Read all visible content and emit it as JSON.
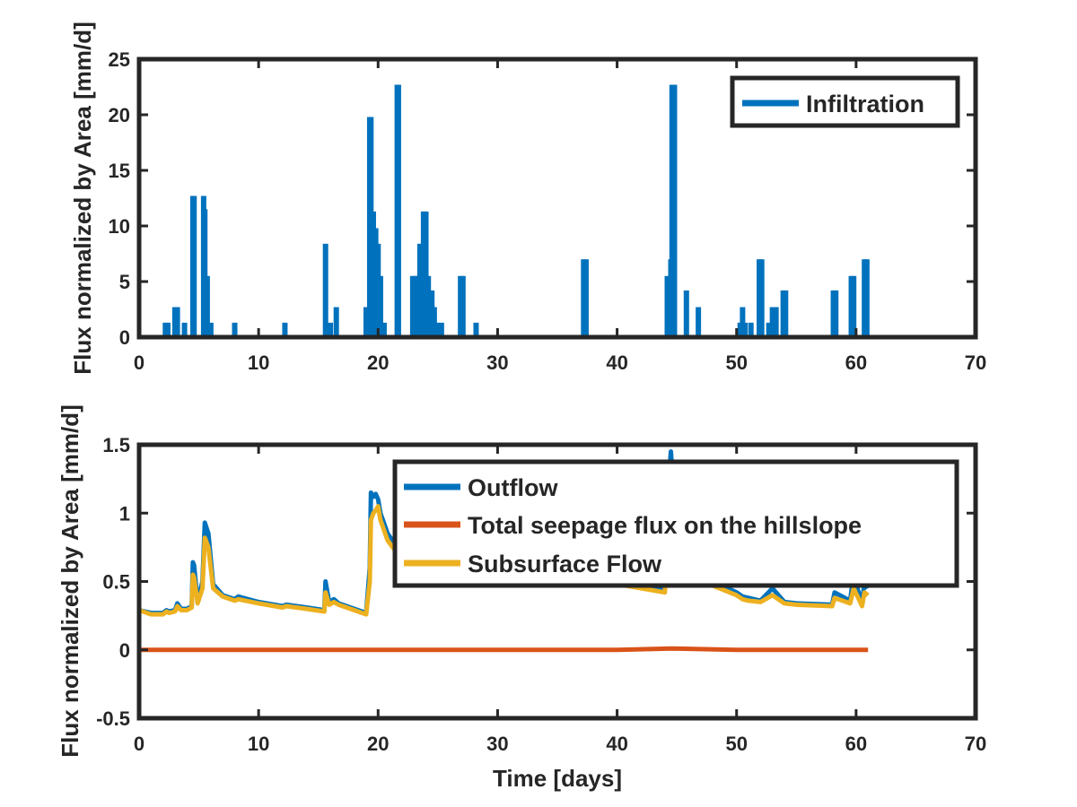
{
  "chart_data": [
    {
      "type": "bar",
      "title": "",
      "xlabel": "",
      "ylabel": "Flux normalized by Area [mm/d]",
      "xlim": [
        0,
        70
      ],
      "ylim": [
        0,
        25
      ],
      "xticks": [
        "0",
        "10",
        "20",
        "30",
        "40",
        "50",
        "60",
        "70"
      ],
      "yticks": [
        "0",
        "5",
        "10",
        "15",
        "20",
        "25"
      ],
      "grid": false,
      "legend_position": "top-right",
      "colors": {
        "infiltration": "#0072BD"
      },
      "series": [
        {
          "name": "Infiltration",
          "x": [
            2.2,
            2.4,
            3.0,
            3.2,
            3.8,
            4.5,
            4.6,
            5.4,
            5.5,
            5.7,
            6.0,
            8.0,
            12.2,
            15.6,
            16.0,
            16.5,
            19.0,
            19.3,
            19.4,
            19.6,
            19.8,
            20.0,
            20.2,
            20.5,
            21.6,
            21.7,
            22.9,
            23.1,
            23.3,
            23.5,
            23.8,
            24.0,
            24.2,
            24.5,
            24.7,
            25.0,
            25.3,
            26.9,
            27.1,
            28.2,
            37.2,
            37.4,
            44.2,
            44.5,
            44.6,
            44.8,
            45.8,
            46.8,
            50.3,
            50.5,
            50.7,
            51.2,
            51.9,
            52.1,
            52.7,
            53.0,
            53.3,
            53.9,
            54.1,
            58.1,
            58.3,
            59.6,
            59.8,
            60.7,
            60.9
          ],
          "values": [
            1.3,
            1.3,
            2.7,
            2.7,
            1.3,
            12.7,
            12.7,
            12.7,
            11.5,
            5.5,
            1.3,
            1.3,
            1.3,
            8.4,
            1.3,
            2.7,
            2.7,
            19.8,
            19.8,
            11.3,
            9.8,
            8.4,
            5.5,
            1.3,
            22.7,
            22.7,
            5.5,
            5.5,
            5.5,
            8.4,
            11.3,
            11.3,
            5.5,
            4.2,
            2.7,
            1.3,
            1.3,
            5.5,
            5.5,
            1.3,
            7.0,
            7.0,
            5.5,
            7.0,
            22.7,
            22.7,
            4.2,
            2.7,
            1.3,
            2.7,
            1.3,
            1.3,
            7.0,
            7.0,
            1.3,
            2.7,
            2.7,
            4.2,
            4.2,
            4.2,
            4.2,
            5.5,
            5.5,
            7.0,
            7.0
          ]
        }
      ]
    },
    {
      "type": "line",
      "title": "",
      "xlabel": "Time [days]",
      "ylabel": "Flux normalized by Area [mm/d]",
      "xlim": [
        0,
        70
      ],
      "ylim": [
        -0.5,
        1.5
      ],
      "xticks": [
        "0",
        "10",
        "20",
        "30",
        "40",
        "50",
        "60",
        "70"
      ],
      "yticks": [
        "-0.5",
        "0",
        "0.5",
        "1",
        "1.5"
      ],
      "grid": false,
      "legend_position": "top-right",
      "colors": {
        "outflow": "#0072BD",
        "seepage": "#D95319",
        "subsurface": "#EDB120"
      },
      "series": [
        {
          "name": "Outflow",
          "x": [
            0,
            1.0,
            2.0,
            2.3,
            2.5,
            3.0,
            3.2,
            3.5,
            4.0,
            4.4,
            4.5,
            4.6,
            4.9,
            5.3,
            5.5,
            5.8,
            6.2,
            7.0,
            8.0,
            8.3,
            10.0,
            12.0,
            12.3,
            14.0,
            15.5,
            15.6,
            15.9,
            16.3,
            16.7,
            18.0,
            19.0,
            19.3,
            19.4,
            19.6,
            19.8,
            20.0,
            20.2,
            20.8,
            22.0,
            23.0,
            25.0,
            30.0,
            35.0,
            40.0,
            44.0,
            44.3,
            44.5,
            44.7,
            45.0,
            46.0,
            48.0,
            50.0,
            50.5,
            51.0,
            52.0,
            53.0,
            54.0,
            55.0,
            58.0,
            58.2,
            59.5,
            59.8,
            60.5,
            60.7,
            61.0
          ],
          "values": [
            0.29,
            0.27,
            0.27,
            0.29,
            0.28,
            0.29,
            0.34,
            0.3,
            0.3,
            0.32,
            0.64,
            0.62,
            0.35,
            0.5,
            0.93,
            0.85,
            0.48,
            0.4,
            0.37,
            0.39,
            0.35,
            0.32,
            0.33,
            0.31,
            0.29,
            0.5,
            0.35,
            0.37,
            0.34,
            0.3,
            0.27,
            0.6,
            1.15,
            1.12,
            1.14,
            1.1,
            1.0,
            0.85,
            0.7,
            0.65,
            0.62,
            0.58,
            0.55,
            0.5,
            0.45,
            1.2,
            1.45,
            1.2,
            0.9,
            0.6,
            0.5,
            0.42,
            0.39,
            0.38,
            0.36,
            0.45,
            0.35,
            0.34,
            0.33,
            0.42,
            0.36,
            0.55,
            0.33,
            0.5,
            0.45
          ]
        },
        {
          "name": "Total seepage flux on the hillslope",
          "x": [
            0,
            10,
            20,
            30,
            40,
            44.6,
            50,
            61
          ],
          "values": [
            0,
            0,
            0,
            0,
            0,
            0.01,
            0,
            0
          ]
        },
        {
          "name": "Subsurface Flow",
          "x": [
            0,
            1.0,
            2.0,
            2.3,
            2.5,
            3.0,
            3.2,
            3.5,
            4.0,
            4.4,
            4.5,
            4.6,
            4.9,
            5.3,
            5.5,
            5.8,
            6.2,
            7.0,
            8.0,
            8.3,
            10.0,
            12.0,
            12.3,
            14.0,
            15.5,
            15.6,
            15.9,
            16.3,
            16.7,
            18.0,
            19.0,
            19.3,
            19.4,
            19.6,
            19.8,
            20.0,
            20.2,
            20.8,
            22.0,
            23.0,
            25.0,
            30.0,
            35.0,
            40.0,
            44.0,
            44.3,
            44.5,
            44.7,
            45.0,
            46.0,
            48.0,
            50.0,
            50.5,
            51.0,
            52.0,
            53.0,
            54.0,
            55.0,
            58.0,
            58.2,
            59.5,
            59.8,
            60.5,
            60.7,
            61.0
          ],
          "values": [
            0.29,
            0.26,
            0.26,
            0.28,
            0.27,
            0.28,
            0.32,
            0.29,
            0.29,
            0.31,
            0.55,
            0.53,
            0.34,
            0.45,
            0.82,
            0.75,
            0.45,
            0.39,
            0.36,
            0.37,
            0.34,
            0.31,
            0.32,
            0.3,
            0.28,
            0.42,
            0.33,
            0.35,
            0.33,
            0.29,
            0.26,
            0.5,
            0.95,
            1.0,
            1.02,
            1.05,
            0.95,
            0.8,
            0.66,
            0.62,
            0.6,
            0.56,
            0.53,
            0.48,
            0.42,
            0.9,
            1.1,
            0.95,
            0.75,
            0.55,
            0.47,
            0.4,
            0.37,
            0.36,
            0.35,
            0.4,
            0.34,
            0.33,
            0.32,
            0.38,
            0.34,
            0.45,
            0.32,
            0.42,
            0.4
          ]
        }
      ]
    }
  ]
}
